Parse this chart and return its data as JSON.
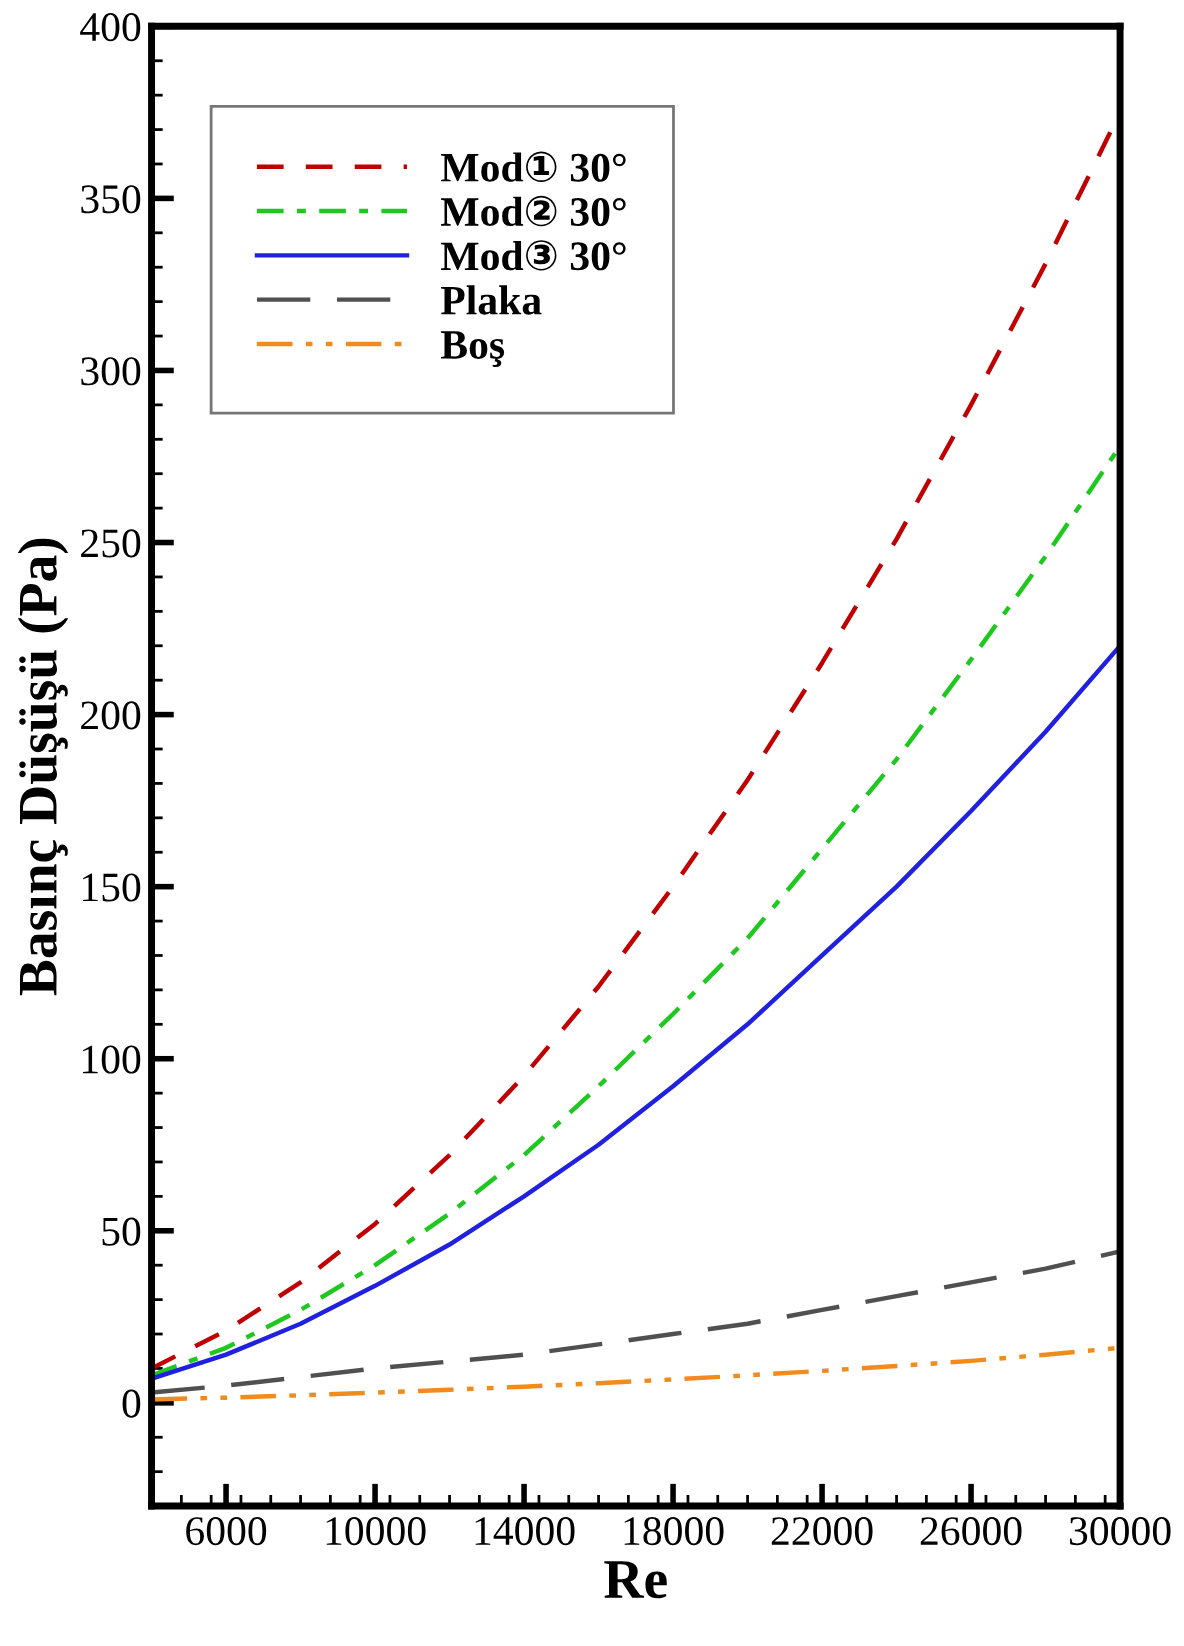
{
  "chart_data": {
    "type": "line",
    "xlabel": "Re",
    "ylabel": "Basınç Düşüşü (Pa)",
    "x": [
      4000,
      6000,
      8000,
      10000,
      12000,
      14000,
      16000,
      18000,
      20000,
      22000,
      24000,
      26000,
      28000,
      30000
    ],
    "series": [
      {
        "name": "Mod① 30°",
        "color": "#c00000",
        "line_style": "dashed",
        "values": [
          10,
          21,
          35,
          52,
          72,
          95,
          121,
          150,
          181,
          215,
          251,
          290,
          331,
          375
        ]
      },
      {
        "name": "Mod② 30°",
        "color": "#1ec81e",
        "line_style": "dashdot",
        "values": [
          8,
          16,
          27,
          40,
          55,
          72,
          92,
          113,
          135,
          161,
          187,
          216,
          246,
          278
        ]
      },
      {
        "name": "Mod③ 30°",
        "color": "#2020e0",
        "line_style": "solid",
        "values": [
          7,
          14,
          23,
          34,
          46,
          60,
          75,
          92,
          110,
          130,
          150,
          172,
          195,
          220
        ]
      },
      {
        "name": "Plaka",
        "color": "#505050",
        "line_style": "longdash",
        "values": [
          3,
          5,
          7.5,
          10,
          12,
          14,
          17,
          20,
          23,
          27,
          31,
          35,
          39,
          44
        ]
      },
      {
        "name": "Boş",
        "color": "#f08c1e",
        "line_style": "dashdotdot",
        "values": [
          1,
          1.5,
          2.2,
          3,
          3.8,
          4.7,
          5.7,
          6.8,
          8,
          9.3,
          10.7,
          12.2,
          14,
          16
        ]
      }
    ],
    "xlim": [
      4000,
      30000
    ],
    "xticks": [
      6000,
      10000,
      14000,
      18000,
      22000,
      26000,
      30000
    ],
    "ylim": [
      -30,
      400
    ],
    "yticks": [
      0,
      50,
      100,
      150,
      200,
      250,
      300,
      350,
      400
    ],
    "grid": false,
    "legend": "top left",
    "marker": "none"
  }
}
